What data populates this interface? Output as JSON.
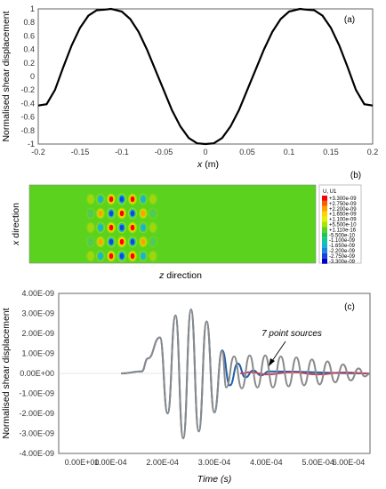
{
  "chart_data": [
    {
      "type": "line",
      "panel_label": "(a)",
      "xlabel_var": "x",
      "xlabel_unit": " (m)",
      "ylabel": "Normalised shear displacement",
      "xlim": [
        -0.2,
        0.2
      ],
      "ylim": [
        -1,
        1
      ],
      "xticks": [
        "-0.2",
        "-0.15",
        "-0.1",
        "-0.05",
        "0",
        "0.05",
        "0.1",
        "0.15",
        "0.2"
      ],
      "yticks": [
        "1",
        "0.8",
        "0.6",
        "0.4",
        "0.2",
        "0",
        "-0.2",
        "-0.4",
        "-0.6",
        "-0.8",
        "-1"
      ],
      "line_color": "#000000",
      "series": [
        {
          "x": [
            -0.2,
            -0.19,
            -0.18,
            -0.17,
            -0.16,
            -0.15,
            -0.14,
            -0.13,
            -0.12,
            -0.113,
            -0.1,
            -0.09,
            -0.08,
            -0.07,
            -0.06,
            -0.05,
            -0.04,
            -0.03,
            -0.02,
            -0.01,
            0,
            0.01,
            0.02,
            0.03,
            0.04,
            0.05,
            0.06,
            0.07,
            0.08,
            0.09,
            0.1,
            0.113,
            0.12,
            0.13,
            0.14,
            0.15,
            0.16,
            0.17,
            0.18,
            0.19,
            0.2
          ],
          "y": [
            -0.43,
            -0.41,
            -0.2,
            0.14,
            0.46,
            0.72,
            0.9,
            0.98,
            0.99,
            1.0,
            0.96,
            0.85,
            0.66,
            0.4,
            0.1,
            -0.2,
            -0.5,
            -0.74,
            -0.91,
            -0.99,
            -1.0,
            -0.99,
            -0.91,
            -0.74,
            -0.5,
            -0.2,
            0.1,
            0.4,
            0.66,
            0.85,
            0.96,
            1.0,
            0.99,
            0.98,
            0.9,
            0.72,
            0.46,
            0.14,
            -0.2,
            -0.41,
            -0.43
          ]
        }
      ]
    },
    {
      "type": "heatmap",
      "panel_label": "(b)",
      "xlabel_var": "z",
      "xlabel_rest": " direction",
      "ylabel_var": "x",
      "ylabel_rest": " direction",
      "background_color": "#5ad21e",
      "legend": {
        "title": "U, U1",
        "entries": [
          "+3.300e-09",
          "+2.750e-09",
          "+2.200e-09",
          "+1.650e-09",
          "+1.100e-09",
          "+5.500e-10",
          "+1.110e-16",
          "-5.500e-10",
          "-1.100e-09",
          "-1.650e-09",
          "-2.200e-09",
          "-2.750e-09",
          "-3.300e-09"
        ],
        "colors": [
          "#ff0000",
          "#ff5a00",
          "#ffa000",
          "#ffd200",
          "#e6f000",
          "#a6e600",
          "#5ad21e",
          "#1ec850",
          "#14c896",
          "#14b4d2",
          "#1e82e6",
          "#1446dc",
          "#0000c8"
        ]
      }
    },
    {
      "type": "line",
      "panel_label": "(c)",
      "xlabel": "Time (s)",
      "ylabel": "Normalised shear displacement",
      "xlim": [
        0,
        0.0006
      ],
      "ylim": [
        -4e-09,
        4e-09
      ],
      "xticks": [
        "0.00E+00",
        "1.00E-04",
        "2.00E-04",
        "3.00E-04",
        "4.00E-04",
        "5.00E-04",
        "6.00E-04"
      ],
      "yticks": [
        "4.00E-09",
        "3.00E-09",
        "2.00E-09",
        "1.00E-09",
        "0.00E+00",
        "-1.00E-09",
        "-2.00E-09",
        "-3.00E-09",
        "-4.00E-09"
      ],
      "annotation": "7 point sources",
      "series": [
        {
          "color": "#1f5fa8",
          "peaks": [
            [
              0.00012,
              0.0
            ],
            [
              0.00016,
              1e-10
            ],
            [
              0.000172,
              7.5e-10
            ],
            [
              0.000195,
              1.8e-09
            ],
            [
              0.00021,
              -2e-09
            ],
            [
              0.000225,
              2.9e-09
            ],
            [
              0.00024,
              -3.25e-09
            ],
            [
              0.000255,
              3.2e-09
            ],
            [
              0.00027,
              -2.9e-09
            ],
            [
              0.000285,
              2.6e-09
            ],
            [
              0.0003,
              -1.95e-09
            ],
            [
              0.000315,
              1.15e-09
            ],
            [
              0.00033,
              -6e-10
            ],
            [
              0.000345,
              5e-10
            ],
            [
              0.00036,
              -2e-10
            ],
            [
              0.000375,
              1.5e-10
            ],
            [
              0.00039,
              -1e-10
            ],
            [
              0.000405,
              1e-10
            ],
            [
              0.0006,
              0.0
            ]
          ]
        },
        {
          "color": "#c04060",
          "peaks": [
            [
              0.00035,
              0.0
            ],
            [
              0.00037,
              6e-11
            ],
            [
              0.0004,
              -5e-11
            ],
            [
              0.00045,
              6e-11
            ],
            [
              0.0005,
              -5e-11
            ],
            [
              0.00055,
              5e-11
            ],
            [
              0.0006,
              0.0
            ]
          ]
        },
        {
          "color": "#8a8a8a",
          "peaks": [
            [
              0.00012,
              0.0
            ],
            [
              0.00016,
              1e-10
            ],
            [
              0.000172,
              7.5e-10
            ],
            [
              0.000195,
              1.8e-09
            ],
            [
              0.00021,
              -2e-09
            ],
            [
              0.000225,
              2.9e-09
            ],
            [
              0.00024,
              -3.25e-09
            ],
            [
              0.000255,
              3.2e-09
            ],
            [
              0.00027,
              -2.9e-09
            ],
            [
              0.000285,
              2.6e-09
            ],
            [
              0.0003,
              -1.95e-09
            ],
            [
              0.000315,
              1.1e-09
            ],
            [
              0.000323,
              -7e-10
            ],
            [
              0.000338,
              8.5e-10
            ],
            [
              0.000353,
              -7.5e-10
            ],
            [
              0.000368,
              9e-10
            ],
            [
              0.000383,
              -7e-10
            ],
            [
              0.000398,
              9e-10
            ],
            [
              0.000413,
              -7e-10
            ],
            [
              0.000428,
              8.5e-10
            ],
            [
              0.000443,
              -6.5e-10
            ],
            [
              0.000458,
              8e-10
            ],
            [
              0.000473,
              -6e-10
            ],
            [
              0.000488,
              7e-10
            ],
            [
              0.000503,
              -5.5e-10
            ],
            [
              0.000518,
              6e-10
            ],
            [
              0.000533,
              -4.5e-10
            ],
            [
              0.000548,
              4.5e-10
            ],
            [
              0.000563,
              -3.5e-10
            ],
            [
              0.000578,
              2.5e-10
            ],
            [
              0.00059,
              -1.5e-10
            ],
            [
              0.0006,
              0.0
            ]
          ]
        }
      ]
    }
  ]
}
